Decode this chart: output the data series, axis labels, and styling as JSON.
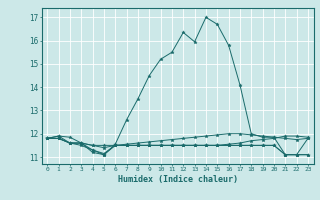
{
  "xlabel": "Humidex (Indice chaleur)",
  "ylabel": "",
  "bg_color": "#cce8e8",
  "grid_color": "#ffffff",
  "line_color": "#1a6b6b",
  "xlim": [
    -0.5,
    23.5
  ],
  "ylim": [
    10.7,
    17.4
  ],
  "xticks": [
    0,
    1,
    2,
    3,
    4,
    5,
    6,
    7,
    8,
    9,
    10,
    11,
    12,
    13,
    14,
    15,
    16,
    17,
    18,
    19,
    20,
    21,
    22,
    23
  ],
  "yticks": [
    11,
    12,
    13,
    14,
    15,
    16,
    17
  ],
  "series": [
    [
      11.8,
      11.9,
      11.85,
      11.6,
      11.2,
      11.1,
      11.55,
      12.6,
      13.5,
      14.5,
      15.2,
      15.5,
      16.35,
      15.95,
      17.0,
      16.7,
      15.8,
      14.1,
      12.0,
      11.85,
      11.85,
      11.1,
      11.1,
      11.8
    ],
    [
      11.8,
      11.9,
      11.6,
      11.6,
      11.5,
      11.5,
      11.5,
      11.5,
      11.5,
      11.5,
      11.5,
      11.5,
      11.5,
      11.5,
      11.5,
      11.5,
      11.55,
      11.6,
      11.7,
      11.75,
      11.8,
      11.9,
      11.9,
      11.85
    ],
    [
      11.8,
      11.8,
      11.6,
      11.6,
      11.5,
      11.4,
      11.5,
      11.5,
      11.5,
      11.5,
      11.5,
      11.5,
      11.5,
      11.5,
      11.5,
      11.5,
      11.5,
      11.5,
      11.5,
      11.5,
      11.5,
      11.1,
      11.1,
      11.1
    ],
    [
      11.8,
      11.8,
      11.6,
      11.6,
      11.3,
      11.1,
      11.5,
      11.5,
      11.5,
      11.5,
      11.5,
      11.5,
      11.5,
      11.5,
      11.5,
      11.5,
      11.5,
      11.5,
      11.5,
      11.5,
      11.5,
      11.1,
      11.1,
      11.1
    ],
    [
      11.8,
      11.8,
      11.6,
      11.5,
      11.3,
      11.15,
      11.5,
      11.55,
      11.6,
      11.65,
      11.7,
      11.75,
      11.8,
      11.85,
      11.9,
      11.95,
      12.0,
      12.0,
      11.95,
      11.9,
      11.85,
      11.8,
      11.75,
      11.8
    ]
  ]
}
